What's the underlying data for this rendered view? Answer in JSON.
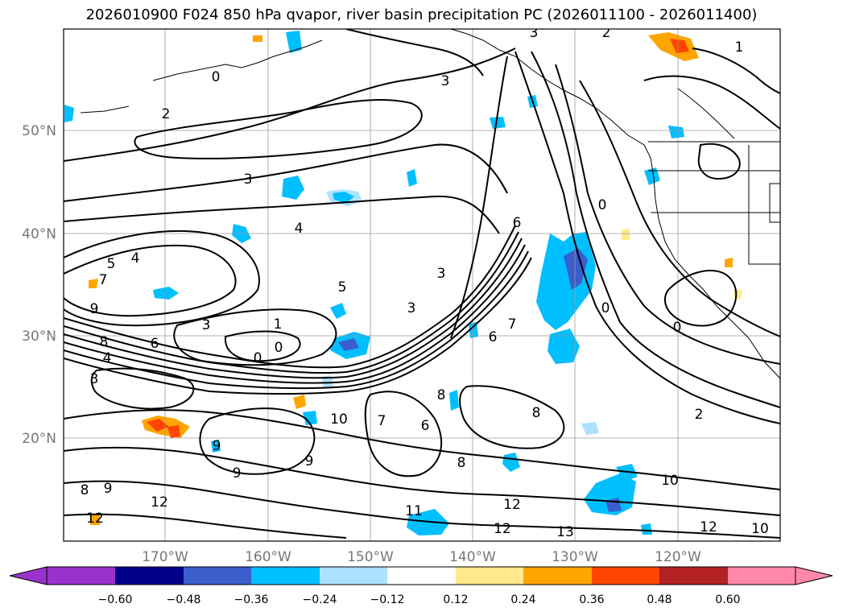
{
  "title": "2026010900 F024 850 hPa qvapor, river basin precipitation PC (2026011100 - 2026011400)",
  "lat_labels": [
    "50°N",
    "40°N",
    "30°N",
    "20°N"
  ],
  "lon_labels": [
    "170°W",
    "160°W",
    "150°W",
    "140°W",
    "130°W",
    "120°W"
  ],
  "colorbar": {
    "ticks": [
      "−0.60",
      "−0.48",
      "−0.36",
      "−0.24",
      "−0.12",
      "0.12",
      "0.24",
      "0.36",
      "0.48",
      "0.60"
    ],
    "colors": [
      "#9932CC",
      "#00008B",
      "#3A5FCD",
      "#00BFFF",
      "#ADE2FF",
      "#FFFFFF",
      "#FFE98C",
      "#FFA500",
      "#FF4500",
      "#B22222",
      "#FF88AA"
    ]
  },
  "contour_labels": [
    "0",
    "2",
    "3",
    "3",
    "4",
    "5",
    "4",
    "7",
    "9",
    "8",
    "4",
    "3",
    "6",
    "3",
    "1",
    "0",
    "0",
    "5",
    "3",
    "3",
    "8",
    "7",
    "6",
    "8",
    "8",
    "10",
    "9",
    "9",
    "9",
    "12",
    "12",
    "11",
    "12",
    "12",
    "13",
    "10",
    "12",
    "10",
    "2",
    "1",
    "3",
    "2",
    "0",
    "0",
    "0",
    "6",
    "6",
    "7",
    "8",
    "9"
  ],
  "colors": {
    "contour": "#000000",
    "grid": "#9a9a9a",
    "coast": "#000000",
    "tick_label": "#777777"
  }
}
